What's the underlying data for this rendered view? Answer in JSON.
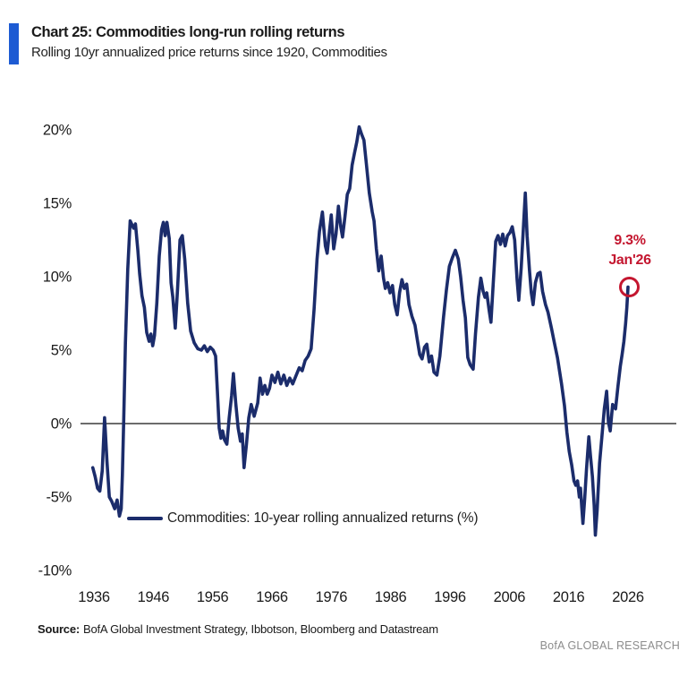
{
  "colors": {
    "accent_bar": "#1d5bd3",
    "line_navy": "#1b2c6b",
    "annotation_red": "#c4162f",
    "zero_axis": "#3c3c3c",
    "text_dark": "#1a1a1a",
    "brand_gray": "#8c8c8c"
  },
  "header": {
    "title": "Chart 25: Commodities long-run rolling returns",
    "subtitle": "Rolling 10yr annualized price returns since 1920, Commodities"
  },
  "chart_data": {
    "type": "line",
    "title": "Chart 25: Commodities long-run rolling returns",
    "subtitle": "Rolling 10yr annualized price returns since 1920, Commodities",
    "xlabel": "",
    "ylabel": "",
    "x_ticks": [
      1936,
      1946,
      1956,
      1966,
      1976,
      1986,
      1996,
      2006,
      2016,
      2026
    ],
    "y_ticks": [
      20,
      15,
      10,
      5,
      0,
      -5,
      -10
    ],
    "y_tick_suffix": "%",
    "xlim": [
      1935.5,
      2027
    ],
    "ylim": [
      -10,
      20
    ],
    "grid": false,
    "zero_line": true,
    "legend_position": "inside-bottom-left",
    "annotation": {
      "value_label": "9.3%",
      "date_label": "Jan'26",
      "year": 2026.0,
      "value": 9.3
    },
    "series": [
      {
        "name": "Commodities: 10-year rolling annualized returns (%)",
        "points": [
          [
            1935.8,
            -3.0
          ],
          [
            1936.2,
            -3.6
          ],
          [
            1936.6,
            -4.4
          ],
          [
            1937.0,
            -4.6
          ],
          [
            1937.4,
            -3.2
          ],
          [
            1937.8,
            0.4
          ],
          [
            1938.2,
            -2.6
          ],
          [
            1938.6,
            -5.0
          ],
          [
            1939.0,
            -5.3
          ],
          [
            1939.5,
            -5.8
          ],
          [
            1939.9,
            -5.2
          ],
          [
            1940.3,
            -6.3
          ],
          [
            1940.6,
            -5.8
          ],
          [
            1940.8,
            -3.5
          ],
          [
            1941.0,
            0.0
          ],
          [
            1941.3,
            5.5
          ],
          [
            1941.7,
            10.5
          ],
          [
            1942.1,
            13.8
          ],
          [
            1942.7,
            13.3
          ],
          [
            1943.0,
            13.6
          ],
          [
            1943.4,
            11.8
          ],
          [
            1943.7,
            10.2
          ],
          [
            1944.1,
            8.7
          ],
          [
            1944.5,
            7.9
          ],
          [
            1944.9,
            6.2
          ],
          [
            1945.3,
            5.6
          ],
          [
            1945.6,
            6.1
          ],
          [
            1945.9,
            5.3
          ],
          [
            1946.2,
            6.0
          ],
          [
            1946.6,
            8.2
          ],
          [
            1947.0,
            11.4
          ],
          [
            1947.4,
            13.2
          ],
          [
            1947.7,
            13.7
          ],
          [
            1948.0,
            12.8
          ],
          [
            1948.3,
            13.7
          ],
          [
            1948.7,
            12.6
          ],
          [
            1949.0,
            9.6
          ],
          [
            1949.3,
            8.6
          ],
          [
            1949.7,
            6.5
          ],
          [
            1950.1,
            9.2
          ],
          [
            1950.5,
            12.5
          ],
          [
            1950.9,
            12.8
          ],
          [
            1951.3,
            11.2
          ],
          [
            1951.8,
            8.2
          ],
          [
            1952.3,
            6.3
          ],
          [
            1952.9,
            5.5
          ],
          [
            1953.5,
            5.1
          ],
          [
            1954.1,
            5.0
          ],
          [
            1954.6,
            5.3
          ],
          [
            1955.1,
            4.9
          ],
          [
            1955.6,
            5.2
          ],
          [
            1956.1,
            5.0
          ],
          [
            1956.5,
            4.6
          ],
          [
            1956.8,
            2.2
          ],
          [
            1957.1,
            -0.3
          ],
          [
            1957.4,
            -1.0
          ],
          [
            1957.7,
            -0.5
          ],
          [
            1958.0,
            -1.1
          ],
          [
            1958.4,
            -1.4
          ],
          [
            1958.8,
            0.4
          ],
          [
            1959.2,
            1.9
          ],
          [
            1959.5,
            3.4
          ],
          [
            1959.9,
            1.4
          ],
          [
            1960.3,
            -0.3
          ],
          [
            1960.7,
            -1.2
          ],
          [
            1961.0,
            -0.7
          ],
          [
            1961.3,
            -3.0
          ],
          [
            1961.7,
            -1.4
          ],
          [
            1962.1,
            0.4
          ],
          [
            1962.5,
            1.3
          ],
          [
            1963.0,
            0.5
          ],
          [
            1963.6,
            1.4
          ],
          [
            1964.0,
            3.1
          ],
          [
            1964.4,
            2.0
          ],
          [
            1964.8,
            2.6
          ],
          [
            1965.2,
            2.0
          ],
          [
            1965.6,
            2.4
          ],
          [
            1966.0,
            3.3
          ],
          [
            1966.5,
            2.8
          ],
          [
            1967.0,
            3.5
          ],
          [
            1967.5,
            2.7
          ],
          [
            1968.0,
            3.3
          ],
          [
            1968.5,
            2.6
          ],
          [
            1969.0,
            3.1
          ],
          [
            1969.5,
            2.7
          ],
          [
            1970.0,
            3.2
          ],
          [
            1970.6,
            3.8
          ],
          [
            1971.1,
            3.6
          ],
          [
            1971.6,
            4.3
          ],
          [
            1972.1,
            4.6
          ],
          [
            1972.6,
            5.1
          ],
          [
            1973.1,
            7.8
          ],
          [
            1973.6,
            11.2
          ],
          [
            1974.0,
            13.1
          ],
          [
            1974.5,
            14.4
          ],
          [
            1975.0,
            12.1
          ],
          [
            1975.3,
            11.6
          ],
          [
            1975.7,
            13.1
          ],
          [
            1976.0,
            14.2
          ],
          [
            1976.4,
            11.9
          ],
          [
            1976.8,
            12.9
          ],
          [
            1977.2,
            14.8
          ],
          [
            1977.6,
            13.4
          ],
          [
            1977.9,
            12.7
          ],
          [
            1978.3,
            14.1
          ],
          [
            1978.7,
            15.6
          ],
          [
            1979.1,
            16.0
          ],
          [
            1979.5,
            17.6
          ],
          [
            1979.9,
            18.4
          ],
          [
            1980.3,
            19.2
          ],
          [
            1980.7,
            20.2
          ],
          [
            1981.1,
            19.7
          ],
          [
            1981.5,
            19.3
          ],
          [
            1981.9,
            17.7
          ],
          [
            1982.4,
            15.7
          ],
          [
            1982.9,
            14.4
          ],
          [
            1983.2,
            13.8
          ],
          [
            1983.6,
            11.9
          ],
          [
            1984.0,
            10.4
          ],
          [
            1984.4,
            11.4
          ],
          [
            1984.8,
            9.9
          ],
          [
            1985.1,
            9.2
          ],
          [
            1985.5,
            9.6
          ],
          [
            1985.9,
            8.9
          ],
          [
            1986.3,
            9.4
          ],
          [
            1986.7,
            8.1
          ],
          [
            1987.1,
            7.4
          ],
          [
            1987.5,
            8.9
          ],
          [
            1987.9,
            9.8
          ],
          [
            1988.3,
            9.2
          ],
          [
            1988.7,
            9.5
          ],
          [
            1989.1,
            8.1
          ],
          [
            1989.6,
            7.3
          ],
          [
            1990.1,
            6.7
          ],
          [
            1990.5,
            5.7
          ],
          [
            1990.9,
            4.7
          ],
          [
            1991.3,
            4.4
          ],
          [
            1991.7,
            5.2
          ],
          [
            1992.1,
            5.4
          ],
          [
            1992.5,
            4.2
          ],
          [
            1992.9,
            4.6
          ],
          [
            1993.3,
            3.5
          ],
          [
            1993.8,
            3.3
          ],
          [
            1994.3,
            4.6
          ],
          [
            1994.9,
            7.2
          ],
          [
            1995.4,
            9.1
          ],
          [
            1995.9,
            10.7
          ],
          [
            1996.4,
            11.3
          ],
          [
            1996.9,
            11.8
          ],
          [
            1997.4,
            11.2
          ],
          [
            1997.8,
            10.0
          ],
          [
            1998.2,
            8.4
          ],
          [
            1998.6,
            7.2
          ],
          [
            1999.0,
            4.5
          ],
          [
            1999.4,
            4.0
          ],
          [
            1999.9,
            3.7
          ],
          [
            2000.3,
            6.1
          ],
          [
            2000.8,
            8.6
          ],
          [
            2001.2,
            9.9
          ],
          [
            2001.6,
            9.0
          ],
          [
            2001.9,
            8.6
          ],
          [
            2002.2,
            8.9
          ],
          [
            2002.6,
            7.7
          ],
          [
            2002.9,
            6.9
          ],
          [
            2003.3,
            9.6
          ],
          [
            2003.7,
            12.4
          ],
          [
            2004.1,
            12.8
          ],
          [
            2004.5,
            12.2
          ],
          [
            2004.9,
            12.9
          ],
          [
            2005.3,
            12.1
          ],
          [
            2005.7,
            12.8
          ],
          [
            2006.1,
            13.0
          ],
          [
            2006.5,
            13.4
          ],
          [
            2006.9,
            12.5
          ],
          [
            2007.3,
            9.8
          ],
          [
            2007.6,
            8.4
          ],
          [
            2008.0,
            10.6
          ],
          [
            2008.4,
            13.6
          ],
          [
            2008.7,
            15.7
          ],
          [
            2009.0,
            12.8
          ],
          [
            2009.4,
            10.4
          ],
          [
            2009.7,
            8.9
          ],
          [
            2010.0,
            8.1
          ],
          [
            2010.4,
            9.6
          ],
          [
            2010.8,
            10.2
          ],
          [
            2011.2,
            10.3
          ],
          [
            2011.6,
            9.0
          ],
          [
            2012.1,
            8.1
          ],
          [
            2012.5,
            7.6
          ],
          [
            2013.1,
            6.5
          ],
          [
            2013.6,
            5.5
          ],
          [
            2014.1,
            4.5
          ],
          [
            2014.8,
            2.7
          ],
          [
            2015.3,
            1.2
          ],
          [
            2015.7,
            -0.6
          ],
          [
            2016.1,
            -1.9
          ],
          [
            2016.5,
            -2.8
          ],
          [
            2016.9,
            -3.9
          ],
          [
            2017.2,
            -4.2
          ],
          [
            2017.5,
            -3.9
          ],
          [
            2017.8,
            -5.0
          ],
          [
            2018.0,
            -4.4
          ],
          [
            2018.2,
            -5.7
          ],
          [
            2018.4,
            -6.8
          ],
          [
            2018.7,
            -5.1
          ],
          [
            2019.0,
            -3.1
          ],
          [
            2019.4,
            -0.9
          ],
          [
            2019.7,
            -2.3
          ],
          [
            2020.0,
            -3.6
          ],
          [
            2020.3,
            -5.6
          ],
          [
            2020.5,
            -7.6
          ],
          [
            2020.8,
            -5.9
          ],
          [
            2021.2,
            -2.7
          ],
          [
            2021.6,
            -0.9
          ],
          [
            2022.0,
            1.0
          ],
          [
            2022.4,
            2.2
          ],
          [
            2022.7,
            0.1
          ],
          [
            2023.0,
            -0.5
          ],
          [
            2023.4,
            1.3
          ],
          [
            2023.9,
            1.0
          ],
          [
            2024.3,
            2.5
          ],
          [
            2024.7,
            3.9
          ],
          [
            2025.0,
            4.7
          ],
          [
            2025.3,
            5.6
          ],
          [
            2025.6,
            6.8
          ],
          [
            2025.8,
            7.9
          ],
          [
            2026.0,
            9.3
          ]
        ]
      }
    ]
  },
  "legend": {
    "label": "Commodities: 10-year rolling annualized returns (%)"
  },
  "footer": {
    "source_label": "Source:",
    "source_text": "BofA Global Investment Strategy, Ibbotson, Bloomberg and Datastream",
    "brand": "BofA GLOBAL RESEARCH"
  }
}
